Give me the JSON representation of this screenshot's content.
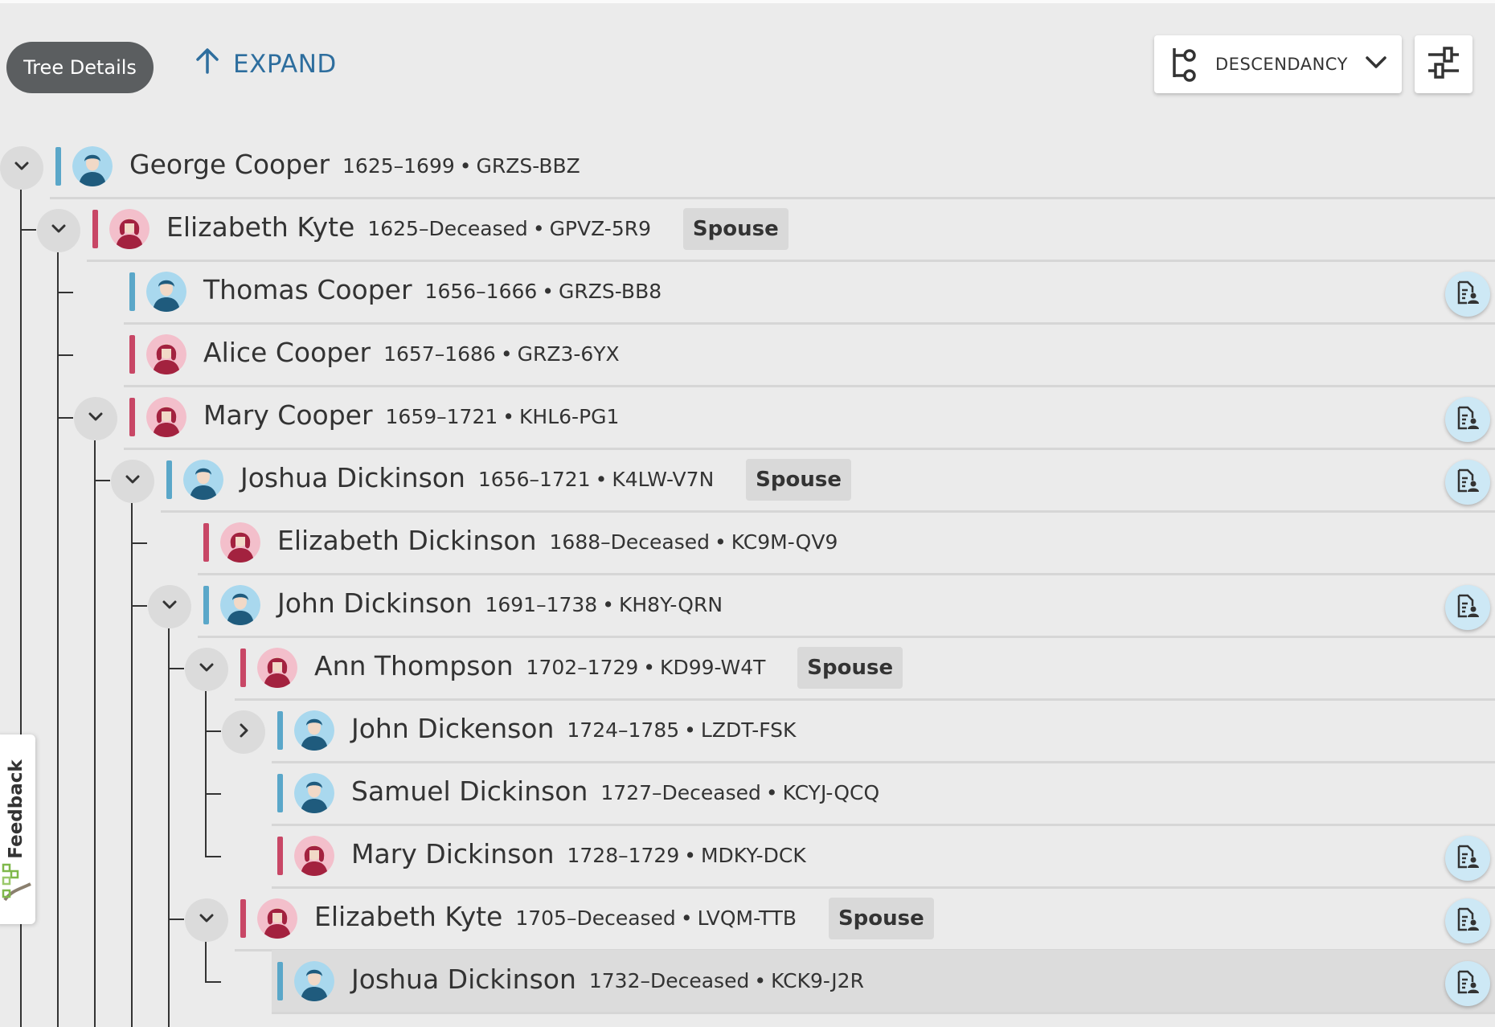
{
  "toolbar": {
    "tree_details_label": "Tree Details",
    "expand_label": "EXPAND",
    "view_select_label": "DESCENDANCY"
  },
  "feedback": {
    "label": "Feedback"
  },
  "colors": {
    "male": "#5aa7c9",
    "female": "#c84766",
    "link": "#2e6e9e"
  },
  "tree": {
    "rows": [
      {
        "name": "George Cooper",
        "dates": "1625–1699",
        "pid": "GRZS-BBZ",
        "sex": "male",
        "depth": 0,
        "toggle": "down",
        "spouse_label": "",
        "record": false,
        "selected": false
      },
      {
        "name": "Elizabeth Kyte",
        "dates": "1625–Deceased",
        "pid": "GPVZ-5R9",
        "sex": "female",
        "depth": 1,
        "toggle": "down",
        "spouse_label": "Spouse",
        "record": false,
        "selected": false
      },
      {
        "name": "Thomas Cooper",
        "dates": "1656–1666",
        "pid": "GRZS-BB8",
        "sex": "male",
        "depth": 2,
        "toggle": "",
        "spouse_label": "",
        "record": true,
        "selected": false
      },
      {
        "name": "Alice Cooper",
        "dates": "1657–1686",
        "pid": "GRZ3-6YX",
        "sex": "female",
        "depth": 2,
        "toggle": "",
        "spouse_label": "",
        "record": false,
        "selected": false
      },
      {
        "name": "Mary Cooper",
        "dates": "1659–1721",
        "pid": "KHL6-PG1",
        "sex": "female",
        "depth": 2,
        "toggle": "down",
        "spouse_label": "",
        "record": true,
        "selected": false
      },
      {
        "name": "Joshua Dickinson",
        "dates": "1656–1721",
        "pid": "K4LW-V7N",
        "sex": "male",
        "depth": 3,
        "toggle": "down",
        "spouse_label": "Spouse",
        "record": true,
        "selected": false
      },
      {
        "name": "Elizabeth Dickinson",
        "dates": "1688–Deceased",
        "pid": "KC9M-QV9",
        "sex": "female",
        "depth": 4,
        "toggle": "",
        "spouse_label": "",
        "record": false,
        "selected": false
      },
      {
        "name": "John Dickinson",
        "dates": "1691–1738",
        "pid": "KH8Y-QRN",
        "sex": "male",
        "depth": 4,
        "toggle": "down",
        "spouse_label": "",
        "record": true,
        "selected": false
      },
      {
        "name": "Ann Thompson",
        "dates": "1702–1729",
        "pid": "KD99-W4T",
        "sex": "female",
        "depth": 5,
        "toggle": "down",
        "spouse_label": "Spouse",
        "record": false,
        "selected": false
      },
      {
        "name": "John Dickenson",
        "dates": "1724–1785",
        "pid": "LZDT-FSK",
        "sex": "male",
        "depth": 6,
        "toggle": "right",
        "spouse_label": "",
        "record": false,
        "selected": false
      },
      {
        "name": "Samuel Dickinson",
        "dates": "1727–Deceased",
        "pid": "KCYJ-QCQ",
        "sex": "male",
        "depth": 6,
        "toggle": "",
        "spouse_label": "",
        "record": false,
        "selected": false
      },
      {
        "name": "Mary Dickinson",
        "dates": "1728–1729",
        "pid": "MDKY-DCK",
        "sex": "female",
        "depth": 6,
        "toggle": "",
        "spouse_label": "",
        "record": true,
        "selected": false
      },
      {
        "name": "Elizabeth Kyte",
        "dates": "1705–Deceased",
        "pid": "LVQM-TTB",
        "sex": "female",
        "depth": 5,
        "toggle": "down",
        "spouse_label": "Spouse",
        "record": true,
        "selected": false
      },
      {
        "name": "Joshua Dickinson",
        "dates": "1732–Deceased",
        "pid": "KCK9-J2R",
        "sex": "male",
        "depth": 6,
        "toggle": "",
        "spouse_label": "",
        "record": true,
        "selected": true
      }
    ]
  }
}
